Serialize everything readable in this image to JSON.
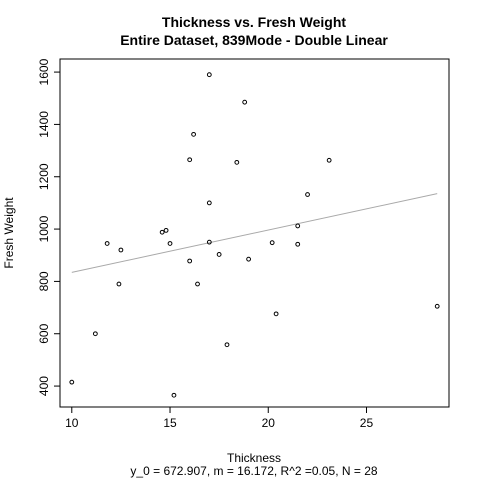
{
  "chart_data": {
    "type": "scatter",
    "title": "Thickness vs. Fresh Weight",
    "subtitle": "Entire Dataset, 839Mode - Double Linear",
    "xlabel": "Thickness",
    "ylabel": "Fresh Weight",
    "footnote": "y_0 = 672.907, m = 16.172, R^2 =0.05, N = 28",
    "xlim": [
      9.4,
      29.2
    ],
    "ylim": [
      320,
      1650
    ],
    "xticks": [
      10,
      15,
      20,
      25
    ],
    "yticks": [
      400,
      600,
      800,
      1000,
      1200,
      1400,
      1600
    ],
    "grid": false,
    "legend": "none",
    "fit": {
      "intercept": 672.907,
      "slope": 16.172,
      "x_start": 10,
      "x_end": 28.6,
      "color": "#a9a9a9"
    },
    "points": [
      {
        "x": 10.0,
        "y": 415
      },
      {
        "x": 11.2,
        "y": 600
      },
      {
        "x": 11.8,
        "y": 945
      },
      {
        "x": 12.4,
        "y": 790
      },
      {
        "x": 12.5,
        "y": 920
      },
      {
        "x": 14.6,
        "y": 988
      },
      {
        "x": 14.8,
        "y": 995
      },
      {
        "x": 15.0,
        "y": 945
      },
      {
        "x": 15.2,
        "y": 365
      },
      {
        "x": 16.0,
        "y": 878
      },
      {
        "x": 16.0,
        "y": 1265
      },
      {
        "x": 16.2,
        "y": 1362
      },
      {
        "x": 16.4,
        "y": 790
      },
      {
        "x": 17.0,
        "y": 1590
      },
      {
        "x": 17.0,
        "y": 1100
      },
      {
        "x": 17.0,
        "y": 950
      },
      {
        "x": 17.5,
        "y": 903
      },
      {
        "x": 17.9,
        "y": 558
      },
      {
        "x": 18.4,
        "y": 1255
      },
      {
        "x": 18.8,
        "y": 1485
      },
      {
        "x": 19.0,
        "y": 885
      },
      {
        "x": 20.2,
        "y": 948
      },
      {
        "x": 20.4,
        "y": 676
      },
      {
        "x": 21.5,
        "y": 1012
      },
      {
        "x": 21.5,
        "y": 942
      },
      {
        "x": 22.0,
        "y": 1132
      },
      {
        "x": 23.1,
        "y": 1263
      },
      {
        "x": 28.6,
        "y": 705
      }
    ]
  }
}
